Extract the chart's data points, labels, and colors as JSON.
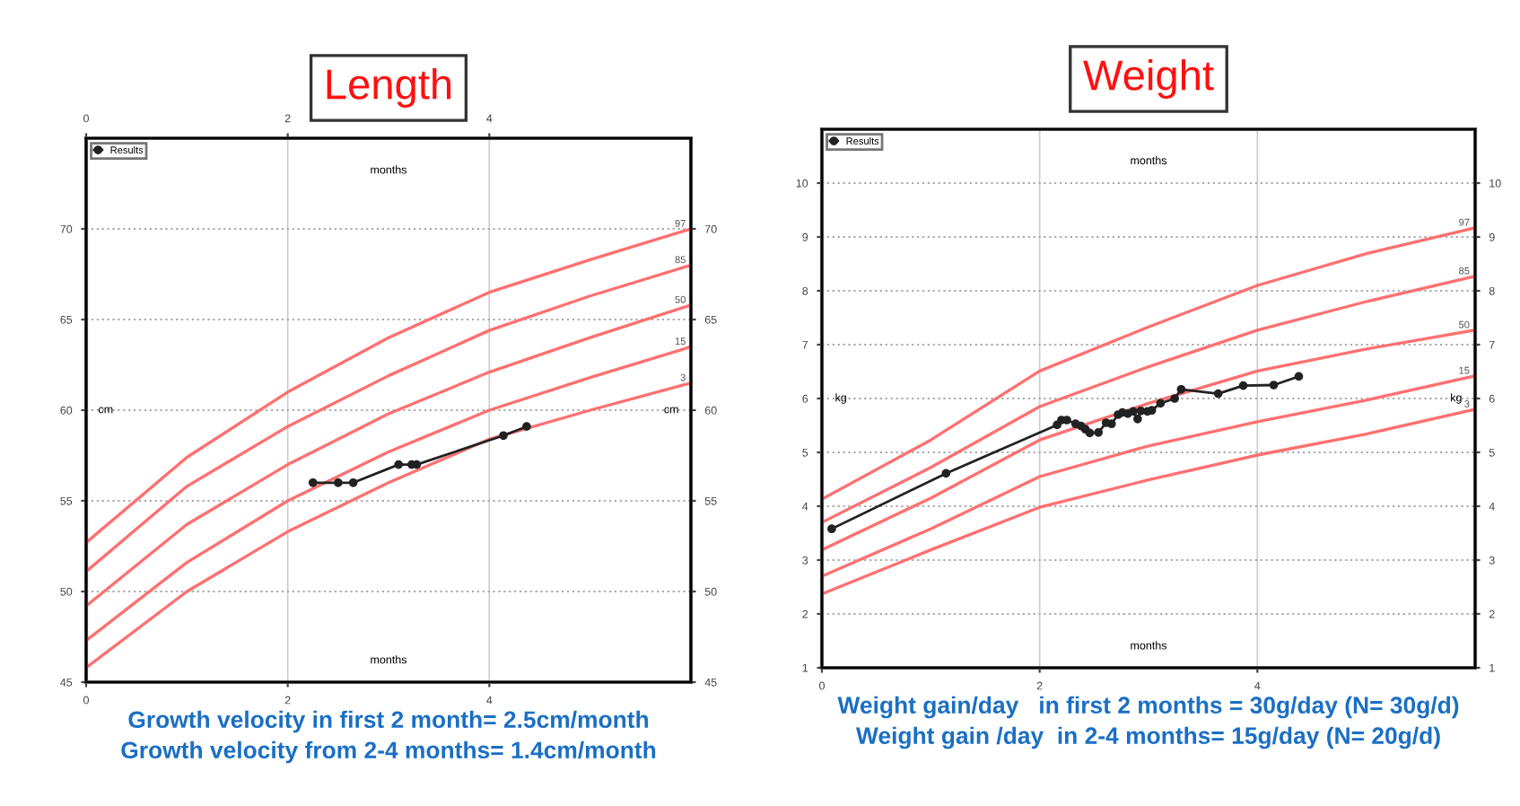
{
  "chart_data": [
    {
      "type": "line",
      "title": "Length",
      "xlabel": "months",
      "x2label": "months",
      "ylabel": "cm",
      "y2label": "cm",
      "xlim": [
        0,
        6
      ],
      "xticks": [
        0,
        2,
        4
      ],
      "x2lim": [
        0,
        6
      ],
      "x2ticks": [
        0,
        2,
        4
      ],
      "ylim": [
        45,
        75
      ],
      "yticks": [
        45,
        50,
        55,
        60,
        65,
        70
      ],
      "y2lim": [
        45,
        75
      ],
      "y2ticks": [
        45,
        50,
        55,
        60,
        65,
        70
      ],
      "grid": true,
      "legend": "top left",
      "series": [
        {
          "name": "97",
          "color": "#ff7070",
          "marker": "none",
          "x": [
            0,
            1,
            2,
            3,
            4,
            5,
            6
          ],
          "values": [
            52.7,
            57.4,
            61.0,
            64.0,
            66.5,
            68.3,
            70.0
          ]
        },
        {
          "name": "85",
          "color": "#ff7070",
          "marker": "none",
          "x": [
            0,
            1,
            2,
            3,
            4,
            5,
            6
          ],
          "values": [
            51.1,
            55.8,
            59.1,
            61.9,
            64.4,
            66.3,
            68.0
          ]
        },
        {
          "name": "50",
          "color": "#ff7070",
          "marker": "none",
          "x": [
            0,
            1,
            2,
            3,
            4,
            5,
            6
          ],
          "values": [
            49.2,
            53.7,
            57.0,
            59.8,
            62.1,
            64.0,
            65.8
          ]
        },
        {
          "name": "15",
          "color": "#ff7070",
          "marker": "none",
          "x": [
            0,
            1,
            2,
            3,
            4,
            5,
            6
          ],
          "values": [
            47.3,
            51.6,
            55.0,
            57.7,
            60.0,
            61.8,
            63.5
          ]
        },
        {
          "name": "3",
          "color": "#ff7070",
          "marker": "none",
          "x": [
            0,
            1,
            2,
            3,
            4,
            5,
            6
          ],
          "values": [
            45.8,
            50.0,
            53.3,
            56.0,
            58.4,
            60.0,
            61.5
          ]
        },
        {
          "name": "Results",
          "color": "#222222",
          "marker": "circle",
          "x": [
            2.25,
            2.5,
            2.65,
            3.1,
            3.23,
            3.28,
            4.14,
            4.37
          ],
          "values": [
            56.0,
            56.0,
            56.0,
            57.0,
            57.0,
            57.0,
            58.6,
            59.1
          ]
        }
      ],
      "annotations": [
        "Growth velocity in first 2 month= 2.5cm/month",
        "Growth velocity from 2-4 months= 1.4cm/month"
      ]
    },
    {
      "type": "line",
      "title": "Weight",
      "xlabel": "months",
      "x2label": "months",
      "ylabel": "kg",
      "y2label": "kg",
      "xlim": [
        0,
        6
      ],
      "xticks": [
        0,
        2,
        4
      ],
      "ylim": [
        1,
        11
      ],
      "yticks": [
        1,
        2,
        3,
        4,
        5,
        6,
        7,
        8,
        9,
        10
      ],
      "y2lim": [
        1,
        11
      ],
      "y2ticks": [
        1,
        2,
        3,
        4,
        5,
        6,
        7,
        8,
        9,
        10
      ],
      "grid": true,
      "legend": "top left",
      "series": [
        {
          "name": "97",
          "color": "#ff7070",
          "marker": "none",
          "x": [
            0,
            1,
            2,
            3,
            4,
            5,
            6
          ],
          "values": [
            4.13,
            5.23,
            6.51,
            7.33,
            8.1,
            8.69,
            9.17
          ]
        },
        {
          "name": "85",
          "color": "#ff7070",
          "marker": "none",
          "x": [
            0,
            1,
            2,
            3,
            4,
            5,
            6
          ],
          "values": [
            3.7,
            4.72,
            5.85,
            6.59,
            7.27,
            7.8,
            8.27
          ]
        },
        {
          "name": "50",
          "color": "#ff7070",
          "marker": "none",
          "x": [
            0,
            1,
            2,
            3,
            4,
            5,
            6
          ],
          "values": [
            3.19,
            4.15,
            5.23,
            5.91,
            6.51,
            6.92,
            7.27
          ]
        },
        {
          "name": "15",
          "color": "#ff7070",
          "marker": "none",
          "x": [
            0,
            1,
            2,
            3,
            4,
            5,
            6
          ],
          "values": [
            2.7,
            3.58,
            4.55,
            5.12,
            5.57,
            5.97,
            6.42
          ]
        },
        {
          "name": "3",
          "color": "#ff7070",
          "marker": "none",
          "x": [
            0,
            1,
            2,
            3,
            4,
            5,
            6
          ],
          "values": [
            2.37,
            3.19,
            3.98,
            4.49,
            4.95,
            5.34,
            5.8
          ]
        },
        {
          "name": "Results",
          "color": "#222222",
          "marker": "circle",
          "x": [
            0.09,
            1.14,
            2.16,
            2.2,
            2.25,
            2.33,
            2.38,
            2.42,
            2.46,
            2.54,
            2.61,
            2.66,
            2.72,
            2.76,
            2.81,
            2.86,
            2.9,
            2.93,
            2.99,
            3.03,
            3.11,
            3.24,
            3.3,
            3.64,
            3.87,
            4.15,
            4.38
          ],
          "values": [
            3.58,
            4.61,
            5.51,
            5.6,
            5.6,
            5.53,
            5.49,
            5.43,
            5.36,
            5.37,
            5.55,
            5.53,
            5.7,
            5.74,
            5.72,
            5.76,
            5.62,
            5.77,
            5.76,
            5.78,
            5.91,
            6.0,
            6.17,
            6.09,
            6.24,
            6.25,
            6.41
          ]
        }
      ],
      "annotations": [
        "Weight gain/day   in first 2 months = 30g/day (N= 30g/d)",
        "Weight gain /day  in 2-4 months= 15g/day (N= 20g/d)"
      ]
    }
  ]
}
